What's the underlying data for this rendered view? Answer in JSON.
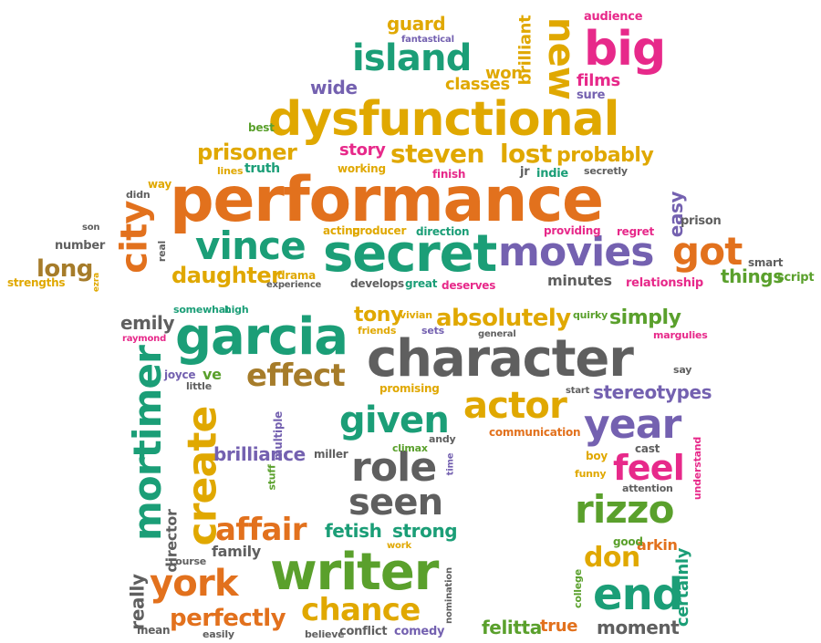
{
  "palette": {
    "orange": "#e2711d",
    "gold": "#e0a800",
    "teal": "#1b9e77",
    "green": "#5aa02c",
    "purple": "#7461b0",
    "magenta": "#e7298a",
    "gray": "#5f5f5f",
    "brown": "#a67c2a"
  },
  "words": [
    {
      "text": "performance",
      "color": "orange"
    },
    {
      "text": "dysfunctional",
      "color": "gold"
    },
    {
      "text": "character",
      "color": "gray"
    },
    {
      "text": "secret",
      "color": "teal"
    },
    {
      "text": "garcia",
      "color": "teal"
    },
    {
      "text": "writer",
      "color": "green"
    },
    {
      "text": "mortimer",
      "color": "teal"
    },
    {
      "text": "movies",
      "color": "purple"
    },
    {
      "text": "vince",
      "color": "teal"
    },
    {
      "text": "create",
      "color": "gold"
    },
    {
      "text": "role",
      "color": "gray"
    },
    {
      "text": "seen",
      "color": "gray"
    },
    {
      "text": "given",
      "color": "teal"
    },
    {
      "text": "actor",
      "color": "gold"
    },
    {
      "text": "year",
      "color": "purple"
    },
    {
      "text": "rizzo",
      "color": "green"
    },
    {
      "text": "end",
      "color": "teal"
    },
    {
      "text": "big",
      "color": "magenta"
    },
    {
      "text": "new",
      "color": "gold"
    },
    {
      "text": "island",
      "color": "teal"
    },
    {
      "text": "city",
      "color": "orange"
    },
    {
      "text": "got",
      "color": "orange"
    },
    {
      "text": "york",
      "color": "orange"
    },
    {
      "text": "chance",
      "color": "gold"
    },
    {
      "text": "affair",
      "color": "orange"
    },
    {
      "text": "effect",
      "color": "brown"
    },
    {
      "text": "feel",
      "color": "magenta"
    },
    {
      "text": "absolutely",
      "color": "gold"
    },
    {
      "text": "perfectly",
      "color": "orange"
    },
    {
      "text": "don",
      "color": "gold"
    },
    {
      "text": "daughter",
      "color": "gold"
    },
    {
      "text": "prisoner",
      "color": "gold"
    },
    {
      "text": "steven",
      "color": "gold"
    },
    {
      "text": "lost",
      "color": "gold"
    },
    {
      "text": "probably",
      "color": "gold"
    },
    {
      "text": "story",
      "color": "magenta"
    },
    {
      "text": "brilliance",
      "color": "purple"
    },
    {
      "text": "long",
      "color": "brown"
    },
    {
      "text": "fetish",
      "color": "teal"
    },
    {
      "text": "strong",
      "color": "teal"
    },
    {
      "text": "stereotypes",
      "color": "purple"
    },
    {
      "text": "simply",
      "color": "green"
    },
    {
      "text": "emily",
      "color": "gray"
    },
    {
      "text": "tony",
      "color": "gold"
    },
    {
      "text": "moment",
      "color": "gray"
    },
    {
      "text": "felitta",
      "color": "green"
    },
    {
      "text": "true",
      "color": "orange"
    },
    {
      "text": "films",
      "color": "magenta"
    },
    {
      "text": "won",
      "color": "gold"
    },
    {
      "text": "classes",
      "color": "gold"
    },
    {
      "text": "wide",
      "color": "purple"
    },
    {
      "text": "guard",
      "color": "gold"
    },
    {
      "text": "brilliant",
      "color": "gold"
    },
    {
      "text": "things",
      "color": "green"
    },
    {
      "text": "director",
      "color": "gray"
    },
    {
      "text": "family",
      "color": "gray"
    },
    {
      "text": "arkin",
      "color": "orange"
    },
    {
      "text": "certainly",
      "color": "teal"
    },
    {
      "text": "really",
      "color": "gray"
    },
    {
      "text": "easy",
      "color": "purple"
    },
    {
      "text": "minutes",
      "color": "gray"
    },
    {
      "text": "ve",
      "color": "green"
    },
    {
      "text": "truth",
      "color": "teal"
    },
    {
      "text": "best",
      "color": "green"
    },
    {
      "text": "audience",
      "color": "magenta"
    },
    {
      "text": "fantastical",
      "color": "purple"
    },
    {
      "text": "sure",
      "color": "purple"
    },
    {
      "text": "way",
      "color": "gold"
    },
    {
      "text": "lines",
      "color": "gold"
    },
    {
      "text": "didn",
      "color": "gray"
    },
    {
      "text": "son",
      "color": "gray"
    },
    {
      "text": "number",
      "color": "gray"
    },
    {
      "text": "real",
      "color": "gray"
    },
    {
      "text": "strengths",
      "color": "gold"
    },
    {
      "text": "ezra",
      "color": "gold"
    },
    {
      "text": "working",
      "color": "gold"
    },
    {
      "text": "finish",
      "color": "magenta"
    },
    {
      "text": "jr",
      "color": "gray"
    },
    {
      "text": "indie",
      "color": "teal"
    },
    {
      "text": "secretly",
      "color": "gray"
    },
    {
      "text": "acting",
      "color": "gold"
    },
    {
      "text": "producer",
      "color": "gold"
    },
    {
      "text": "direction",
      "color": "teal"
    },
    {
      "text": "providing",
      "color": "magenta"
    },
    {
      "text": "regret",
      "color": "magenta"
    },
    {
      "text": "prison",
      "color": "gray"
    },
    {
      "text": "smart",
      "color": "gray"
    },
    {
      "text": "script",
      "color": "green"
    },
    {
      "text": "relationship",
      "color": "magenta"
    },
    {
      "text": "drama",
      "color": "gold"
    },
    {
      "text": "experience",
      "color": "gray"
    },
    {
      "text": "develops",
      "color": "gray"
    },
    {
      "text": "great",
      "color": "teal"
    },
    {
      "text": "deserves",
      "color": "magenta"
    },
    {
      "text": "somewhat",
      "color": "teal"
    },
    {
      "text": "high",
      "color": "teal"
    },
    {
      "text": "raymond",
      "color": "magenta"
    },
    {
      "text": "joyce",
      "color": "purple"
    },
    {
      "text": "little",
      "color": "gray"
    },
    {
      "text": "vivian",
      "color": "gold"
    },
    {
      "text": "friends",
      "color": "gold"
    },
    {
      "text": "sets",
      "color": "purple"
    },
    {
      "text": "general",
      "color": "gray"
    },
    {
      "text": "quirky",
      "color": "green"
    },
    {
      "text": "margulies",
      "color": "magenta"
    },
    {
      "text": "say",
      "color": "gray"
    },
    {
      "text": "start",
      "color": "gray"
    },
    {
      "text": "promising",
      "color": "gold"
    },
    {
      "text": "communication",
      "color": "orange"
    },
    {
      "text": "multiple",
      "color": "purple"
    },
    {
      "text": "climax",
      "color": "green"
    },
    {
      "text": "andy",
      "color": "gray"
    },
    {
      "text": "miller",
      "color": "gray"
    },
    {
      "text": "time",
      "color": "purple"
    },
    {
      "text": "cast",
      "color": "gray"
    },
    {
      "text": "boy",
      "color": "gold"
    },
    {
      "text": "understand",
      "color": "magenta"
    },
    {
      "text": "funny",
      "color": "gold"
    },
    {
      "text": "attention",
      "color": "gray"
    },
    {
      "text": "stuff",
      "color": "green"
    },
    {
      "text": "work",
      "color": "gold"
    },
    {
      "text": "course",
      "color": "gray"
    },
    {
      "text": "good",
      "color": "green"
    },
    {
      "text": "nomination",
      "color": "gray"
    },
    {
      "text": "college",
      "color": "green"
    },
    {
      "text": "mean",
      "color": "gray"
    },
    {
      "text": "easily",
      "color": "gray"
    },
    {
      "text": "believe",
      "color": "gray"
    },
    {
      "text": "conflict",
      "color": "gray"
    },
    {
      "text": "comedy",
      "color": "purple"
    }
  ]
}
